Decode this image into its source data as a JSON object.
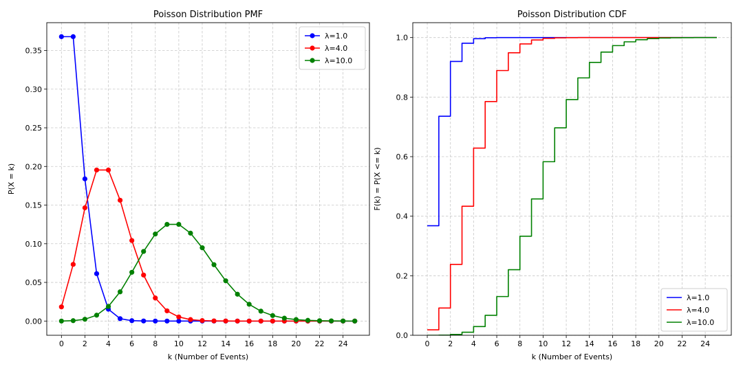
{
  "chart_data": [
    {
      "type": "line",
      "title": "Poisson Distribution PMF",
      "xlabel": "k (Number of Events)",
      "ylabel": "P(X = k)",
      "xlim": [
        -1.25,
        26.25
      ],
      "ylim": [
        -0.0184,
        0.386
      ],
      "xticks": [
        0,
        2,
        4,
        6,
        8,
        10,
        12,
        14,
        16,
        18,
        20,
        22,
        24
      ],
      "xtick_labels": [
        "0",
        "2",
        "4",
        "6",
        "8",
        "10",
        "12",
        "14",
        "16",
        "18",
        "20",
        "22",
        "24"
      ],
      "yticks": [
        0,
        0.05,
        0.1,
        0.15,
        0.2,
        0.25,
        0.3,
        0.35
      ],
      "ytick_labels": [
        "0.00",
        "0.05",
        "0.10",
        "0.15",
        "0.20",
        "0.25",
        "0.30",
        "0.35"
      ],
      "grid": true,
      "legend_position": "top-right",
      "markers": true,
      "x": [
        0,
        1,
        2,
        3,
        4,
        5,
        6,
        7,
        8,
        9,
        10,
        11,
        12,
        13,
        14,
        15,
        16,
        17,
        18,
        19,
        20,
        21,
        22,
        23,
        24,
        25
      ],
      "series": [
        {
          "name": "λ=1.0",
          "color": "#0000ff",
          "values": [
            0.3679,
            0.3679,
            0.1839,
            0.0613,
            0.0153,
            0.0031,
            0.0005,
            0.0001,
            0.0,
            0.0,
            0.0,
            0.0,
            0.0,
            0.0,
            0.0,
            0.0,
            0.0,
            0.0,
            0.0,
            0.0,
            0.0,
            0.0,
            0.0,
            0.0,
            0.0,
            0.0
          ]
        },
        {
          "name": "λ=4.0",
          "color": "#ff0000",
          "values": [
            0.0183,
            0.0733,
            0.1465,
            0.1954,
            0.1954,
            0.1563,
            0.1042,
            0.0595,
            0.0298,
            0.0132,
            0.0053,
            0.0019,
            0.0006,
            0.0002,
            0.0001,
            0.0,
            0.0,
            0.0,
            0.0,
            0.0,
            0.0,
            0.0,
            0.0,
            0.0,
            0.0,
            0.0
          ]
        },
        {
          "name": "λ=10.0",
          "color": "#008000",
          "values": [
            0.0,
            0.0005,
            0.0023,
            0.0076,
            0.0189,
            0.0378,
            0.0631,
            0.0901,
            0.1126,
            0.1251,
            0.1251,
            0.1137,
            0.0948,
            0.0729,
            0.0521,
            0.0347,
            0.0217,
            0.0128,
            0.0071,
            0.0037,
            0.0019,
            0.0009,
            0.0004,
            0.0002,
            0.0001,
            0.0
          ]
        }
      ]
    },
    {
      "type": "step",
      "title": "Poisson Distribution CDF",
      "xlabel": "k (Number of Events)",
      "ylabel": "F(k) = P(X <= k)",
      "xlim": [
        -1.25,
        26.25
      ],
      "ylim": [
        0,
        1.05
      ],
      "xticks": [
        0,
        2,
        4,
        6,
        8,
        10,
        12,
        14,
        16,
        18,
        20,
        22,
        24
      ],
      "xtick_labels": [
        "0",
        "2",
        "4",
        "6",
        "8",
        "10",
        "12",
        "14",
        "16",
        "18",
        "20",
        "22",
        "24"
      ],
      "yticks": [
        0,
        0.2,
        0.4,
        0.6,
        0.8,
        1.0
      ],
      "ytick_labels": [
        "0.0",
        "0.2",
        "0.4",
        "0.6",
        "0.8",
        "1.0"
      ],
      "grid": true,
      "legend_position": "bottom-right",
      "markers": false,
      "x": [
        0,
        1,
        2,
        3,
        4,
        5,
        6,
        7,
        8,
        9,
        10,
        11,
        12,
        13,
        14,
        15,
        16,
        17,
        18,
        19,
        20,
        21,
        22,
        23,
        24,
        25
      ],
      "series": [
        {
          "name": "λ=1.0",
          "color": "#0000ff",
          "values": [
            0.3679,
            0.7358,
            0.9197,
            0.981,
            0.9963,
            0.9994,
            0.9999,
            1.0,
            1.0,
            1.0,
            1.0,
            1.0,
            1.0,
            1.0,
            1.0,
            1.0,
            1.0,
            1.0,
            1.0,
            1.0,
            1.0,
            1.0,
            1.0,
            1.0,
            1.0,
            1.0
          ]
        },
        {
          "name": "λ=4.0",
          "color": "#ff0000",
          "values": [
            0.0183,
            0.0916,
            0.2381,
            0.4335,
            0.6288,
            0.7851,
            0.8893,
            0.9489,
            0.9786,
            0.9919,
            0.9972,
            0.9991,
            0.9997,
            0.9999,
            1.0,
            1.0,
            1.0,
            1.0,
            1.0,
            1.0,
            1.0,
            1.0,
            1.0,
            1.0,
            1.0,
            1.0
          ]
        },
        {
          "name": "λ=10.0",
          "color": "#008000",
          "values": [
            0.0,
            0.0005,
            0.0028,
            0.0103,
            0.0293,
            0.0671,
            0.1301,
            0.2202,
            0.3328,
            0.4579,
            0.583,
            0.6968,
            0.7916,
            0.8645,
            0.9165,
            0.9513,
            0.973,
            0.9857,
            0.9928,
            0.9965,
            0.9984,
            0.9993,
            0.9997,
            0.9999,
            1.0,
            1.0
          ]
        }
      ]
    }
  ]
}
